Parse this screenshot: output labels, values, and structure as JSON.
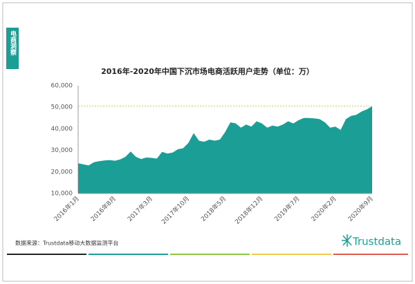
{
  "side_label": "电商洞察",
  "source": "数据来源：Trustdata移动大数据监测平台",
  "logo": "Trustdata",
  "chart_data": {
    "type": "area",
    "title": "2016年-2020年中国下沉市场电商活跃用户走势（单位：万）",
    "color": "#1a9e96",
    "categories": [
      "2016年1月",
      null,
      null,
      null,
      null,
      null,
      null,
      "2016年8月",
      null,
      null,
      null,
      null,
      null,
      null,
      "2017年3月",
      null,
      null,
      null,
      null,
      null,
      null,
      "2017年10月",
      null,
      null,
      null,
      null,
      null,
      null,
      "2018年5月",
      null,
      null,
      null,
      null,
      null,
      null,
      "2018年12月",
      null,
      null,
      null,
      null,
      null,
      null,
      "2019年7月",
      null,
      null,
      null,
      null,
      null,
      null,
      "2020年2月",
      null,
      null,
      null,
      null,
      null,
      null,
      "2020年9月"
    ],
    "values": [
      24000,
      23500,
      23000,
      24500,
      25000,
      25300,
      25500,
      25200,
      25800,
      27000,
      29500,
      27000,
      26000,
      26700,
      26500,
      26200,
      29300,
      28500,
      29000,
      30500,
      31000,
      33500,
      38000,
      34500,
      34000,
      35000,
      34500,
      35000,
      38500,
      43000,
      42500,
      40500,
      42000,
      41000,
      43500,
      42500,
      40500,
      41500,
      41000,
      42000,
      43500,
      42500,
      44000,
      45000,
      45000,
      44800,
      44500,
      43000,
      40500,
      41000,
      39500,
      44500,
      46000,
      46500,
      48000,
      49000,
      50500
    ],
    "ylim": [
      10000,
      60000
    ],
    "yticks": [
      {
        "value": 10000,
        "label": "10,000"
      },
      {
        "value": 20000,
        "label": "20,000"
      },
      {
        "value": 30000,
        "label": "30,000"
      },
      {
        "value": 40000,
        "label": "40,000"
      },
      {
        "value": 50000,
        "label": "50,000"
      },
      {
        "value": 60000,
        "label": "60,000"
      }
    ],
    "reference_line": true
  }
}
